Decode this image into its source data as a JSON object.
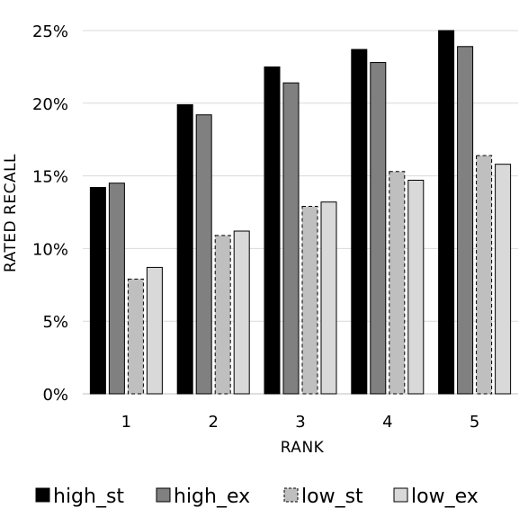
{
  "chart_data": {
    "type": "bar",
    "title": "",
    "xlabel": "RANK",
    "ylabel": "RATED RECALL",
    "categories": [
      "1",
      "2",
      "3",
      "4",
      "5"
    ],
    "ylim": [
      0,
      25
    ],
    "ytick_values": [
      0,
      5,
      10,
      15,
      20,
      25
    ],
    "ytick_labels": [
      "0%",
      "5%",
      "10%",
      "15%",
      "20%",
      "25%"
    ],
    "grid": true,
    "legend_position": "bottom",
    "series": [
      {
        "name": "high_st",
        "values": [
          14.2,
          19.9,
          22.5,
          23.7,
          25.0
        ],
        "color": "#000000",
        "dashed": false
      },
      {
        "name": "high_ex",
        "values": [
          14.5,
          19.2,
          21.4,
          22.8,
          23.9
        ],
        "color": "#808080",
        "dashed": false
      },
      {
        "name": "low_st",
        "values": [
          7.9,
          10.9,
          12.9,
          15.3,
          16.4
        ],
        "color": "#bfbfbf",
        "dashed": true
      },
      {
        "name": "low_ex",
        "values": [
          8.7,
          11.2,
          13.2,
          14.7,
          15.8
        ],
        "color": "#d9d9d9",
        "dashed": false
      }
    ]
  }
}
